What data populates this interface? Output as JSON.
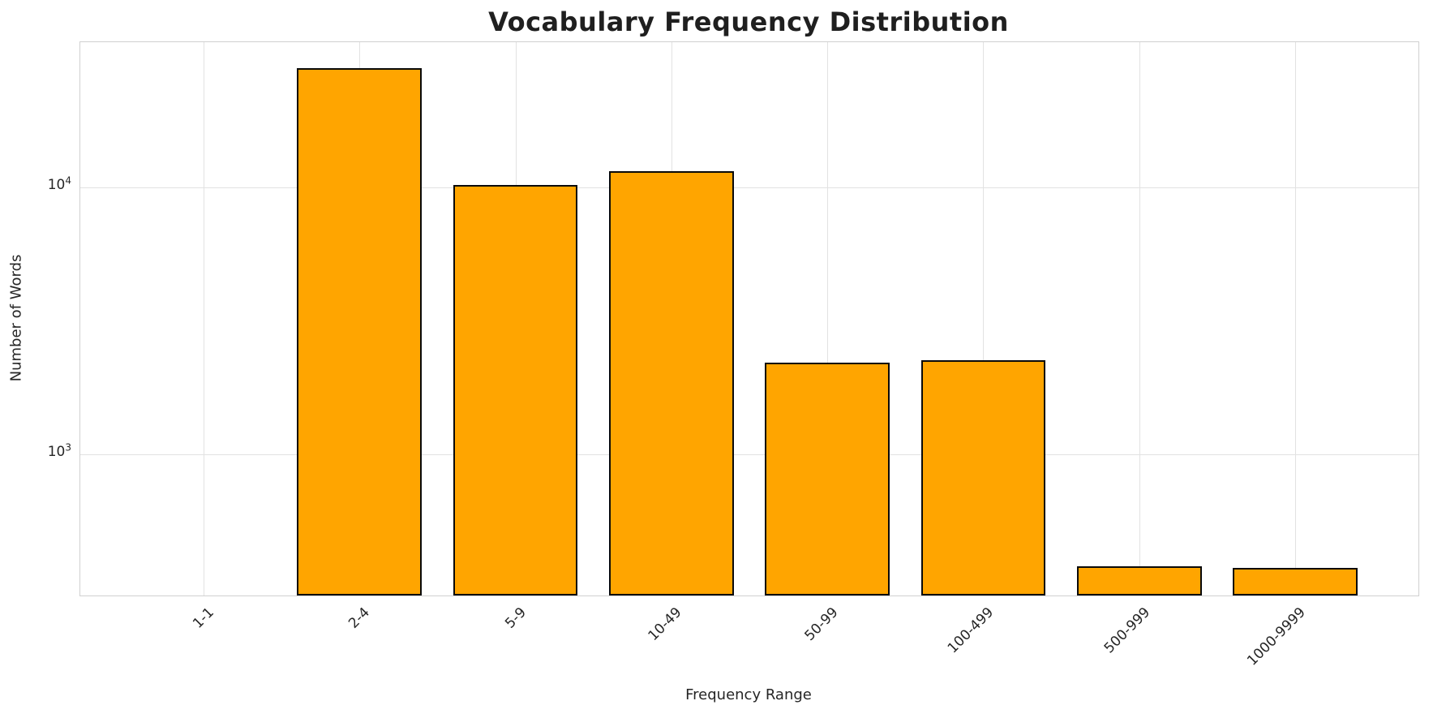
{
  "chart_data": {
    "type": "bar",
    "title": "Vocabulary Frequency Distribution",
    "xlabel": "Frequency Range",
    "ylabel": "Number of Words",
    "categories": [
      "1-1",
      "2-4",
      "5-9",
      "10-49",
      "50-99",
      "100-499",
      "500-999",
      "1000-9999"
    ],
    "values": [
      0,
      28000,
      10200,
      11500,
      2200,
      2250,
      380,
      375
    ],
    "yscale": "log",
    "ylim": [
      295,
      35000
    ],
    "yticks": [
      {
        "value": 1000,
        "base": "10",
        "exp": "3"
      },
      {
        "value": 10000,
        "base": "10",
        "exp": "4"
      }
    ],
    "grid": true,
    "legend": "none",
    "bar_color": "#FFA500",
    "bar_edge_color": "#0a0a0a",
    "grid_color": "#e2e2e2",
    "background": "#ffffff"
  }
}
